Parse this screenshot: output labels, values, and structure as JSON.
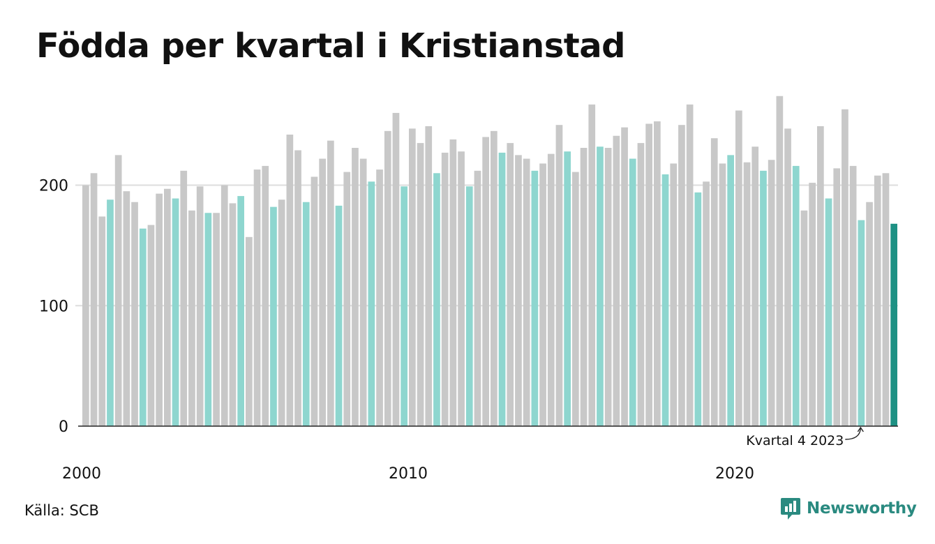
{
  "chart_data": {
    "type": "bar",
    "title": "Födda per kvartal i Kristianstad",
    "xlabel": "",
    "ylabel": "",
    "ylim": [
      0,
      275
    ],
    "y_ticks": [
      0,
      100,
      200
    ],
    "x_tick_labels": [
      {
        "label": "2000",
        "year": 2000
      },
      {
        "label": "2010",
        "year": 2010
      },
      {
        "label": "2020",
        "year": 2020
      }
    ],
    "start_year": 2000,
    "start_quarter": 1,
    "highlight_quarter": 4,
    "values": [
      200,
      210,
      174,
      188,
      225,
      195,
      186,
      164,
      167,
      193,
      197,
      189,
      212,
      179,
      199,
      177,
      177,
      200,
      185,
      191,
      157,
      213,
      216,
      182,
      188,
      242,
      229,
      186,
      207,
      222,
      237,
      183,
      211,
      231,
      222,
      203,
      213,
      245,
      260,
      199,
      247,
      235,
      249,
      210,
      227,
      238,
      228,
      199,
      212,
      240,
      245,
      227,
      235,
      225,
      222,
      212,
      218,
      226,
      250,
      228,
      211,
      231,
      267,
      232,
      231,
      241,
      248,
      222,
      235,
      251,
      253,
      209,
      218,
      250,
      267,
      194,
      203,
      239,
      218,
      225,
      262,
      219,
      232,
      212,
      221,
      274,
      247,
      216,
      179,
      202,
      249,
      189,
      214,
      263,
      216,
      171,
      186,
      208,
      210,
      168
    ],
    "grid": true,
    "annotation": {
      "text": "Kvartal 4 2023",
      "target_index": 95
    },
    "colors": {
      "default": "#c8c8c8",
      "q4": "#8ed6cf",
      "latest": "#1e9184",
      "gridline": "#dddddd",
      "axis": "#222222"
    }
  },
  "footer": {
    "source": "Källa: SCB",
    "brand": "Newsworthy"
  },
  "brand_color": "#2a8a80"
}
